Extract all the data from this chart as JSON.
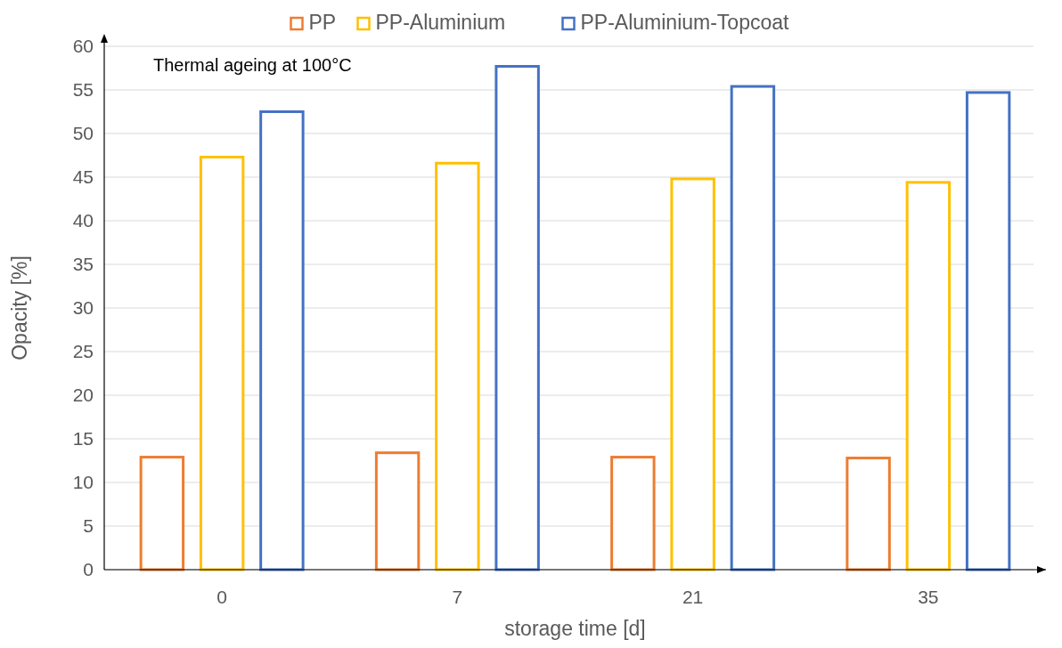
{
  "chart_data": {
    "type": "bar",
    "categories": [
      "0",
      "7",
      "21",
      "35"
    ],
    "series": [
      {
        "name": "PP",
        "color": "#ed7d31",
        "values": [
          12.9,
          13.4,
          12.9,
          12.8
        ]
      },
      {
        "name": "PP-Aluminium",
        "color": "#ffc000",
        "values": [
          47.3,
          46.6,
          44.8,
          44.4
        ]
      },
      {
        "name": "PP-Aluminium-Topcoat",
        "color": "#4472c4",
        "values": [
          52.5,
          57.7,
          55.4,
          54.7
        ]
      }
    ],
    "xlabel": "storage time [d]",
    "ylabel": "Opacity [%]",
    "ylim": [
      0,
      60
    ],
    "yticks": [
      0,
      5,
      10,
      15,
      20,
      25,
      30,
      35,
      40,
      45,
      50,
      55,
      60
    ],
    "grid": "y",
    "legend": "top",
    "annotations": [
      "Thermal ageing at 100°C"
    ]
  }
}
